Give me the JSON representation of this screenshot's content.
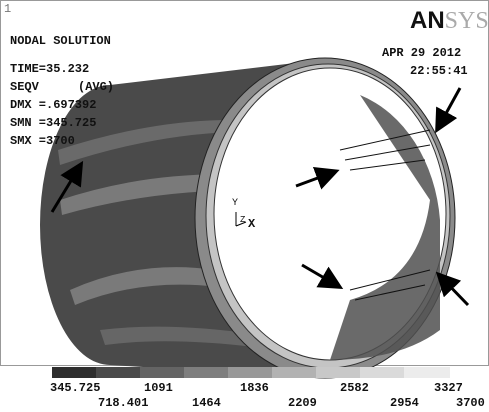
{
  "window_number": "1",
  "logo": {
    "bold": "AN",
    "faded": "SYS"
  },
  "title": "NODAL SOLUTION",
  "info": {
    "time": "TIME=35.232",
    "result": "SEQV",
    "avg": "(AVG)",
    "dmx": "DMX =.697392",
    "smn": "SMN =345.725",
    "smx": "SMX =3700"
  },
  "date": "APR 29 2012",
  "clock": "22:55:41",
  "triad": {
    "y": "Y",
    "z": "Z",
    "x": "X"
  },
  "legend": {
    "upper": [
      "345.725",
      "1091",
      "1836",
      "2582",
      "3327"
    ],
    "lower": [
      "718.401",
      "1464",
      "2209",
      "2954",
      "3700"
    ]
  }
}
